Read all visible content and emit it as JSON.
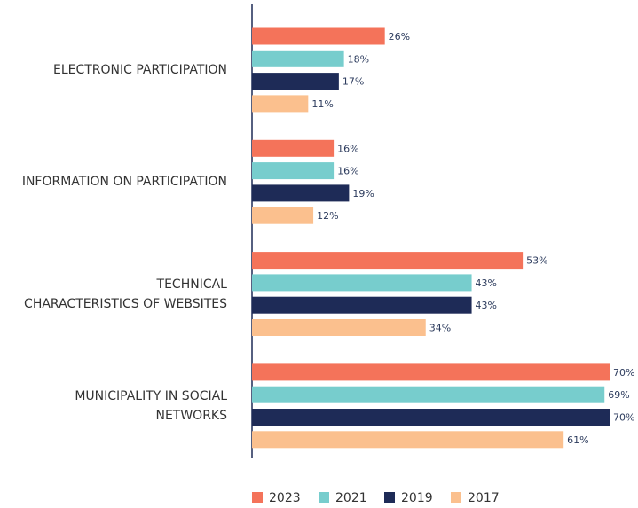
{
  "chart_data": {
    "type": "bar",
    "orientation": "horizontal",
    "categories": [
      "ELECTRONIC PARTICIPATION",
      "INFORMATION ON PARTICIPATION",
      "TECHNICAL\nCHARACTERISTICS OF WEBSITES",
      "MUNICIPALITY IN SOCIAL\nNETWORKS"
    ],
    "series": [
      {
        "name": "2023",
        "color": "#f4735a",
        "values": [
          26,
          16,
          53,
          70
        ],
        "value_labels": [
          "26%",
          "16%",
          "53%",
          "70%"
        ]
      },
      {
        "name": "2021",
        "color": "#77cdcd",
        "values": [
          18,
          16,
          43,
          69
        ],
        "value_labels": [
          "18%",
          "16%",
          "43%",
          "69%"
        ]
      },
      {
        "name": "2019",
        "color": "#1e2b57",
        "values": [
          17,
          19,
          43,
          70
        ],
        "value_labels": [
          "17%",
          "19%",
          "43%",
          "70%"
        ]
      },
      {
        "name": "2017",
        "color": "#fbc08e",
        "values": [
          11,
          12,
          34,
          61
        ],
        "value_labels": [
          "11%",
          "12%",
          "34%",
          "61%"
        ]
      }
    ],
    "legend": "bottom"
  }
}
